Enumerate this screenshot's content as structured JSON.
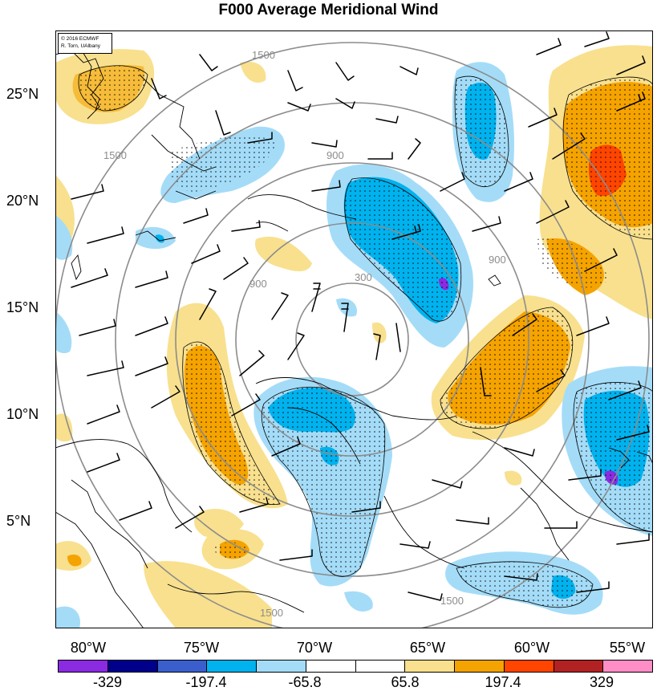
{
  "title": "F000 Average Meridional Wind",
  "credit": {
    "line1": "© 2016 ECMWF",
    "line2": "R. Torn, UAlbany"
  },
  "latitude_labels": [
    {
      "text": "25°N",
      "key": "25"
    },
    {
      "text": "20°N",
      "key": "20"
    },
    {
      "text": "15°N",
      "key": "15"
    },
    {
      "text": "10°N",
      "key": "10"
    },
    {
      "text": "5°N",
      "key": "5"
    }
  ],
  "longitude_labels": [
    "80°W",
    "75°W",
    "70°W",
    "65°W",
    "60°W",
    "55°W"
  ],
  "range_ring_labels": [
    "300",
    "900",
    "1500"
  ],
  "colorbar": {
    "colors": [
      "#8a2be2",
      "#00008b",
      "#3a5fcd",
      "#00b2ee",
      "#a4dcf8",
      "#ffffff",
      "#ffffff",
      "#f8e08e",
      "#f5a300",
      "#ff4500",
      "#b22222",
      "#ff8ec6"
    ],
    "labels": [
      "-329",
      "-197.4",
      "-65.8",
      "65.8",
      "197.4",
      "329"
    ]
  },
  "field_colors": {
    "light_blue": "#a4dcf8",
    "blue": "#00b2ee",
    "purple": "#8a2be2",
    "light_yellow": "#f8e08e",
    "orange": "#f5a300",
    "red": "#ff4500"
  }
}
